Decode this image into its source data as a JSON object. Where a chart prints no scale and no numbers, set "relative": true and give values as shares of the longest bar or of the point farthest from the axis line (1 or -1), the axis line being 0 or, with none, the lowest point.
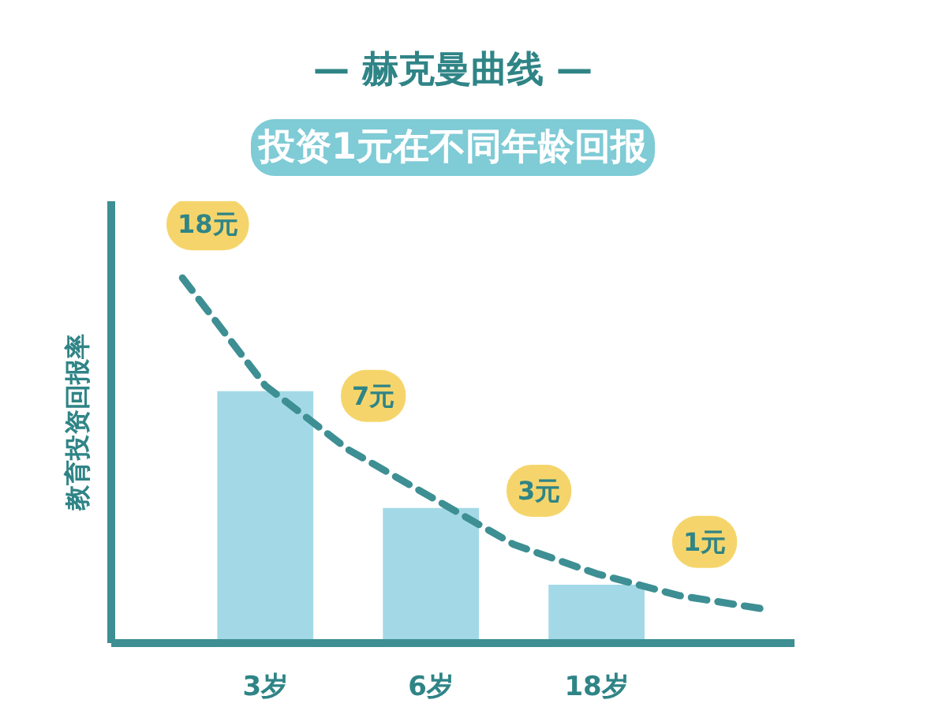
{
  "chart_data": {
    "type": "bar",
    "title": "— 赫克曼曲线 —",
    "subtitle": "投资1元在不同年龄回报",
    "ylabel": "教育投资回报率",
    "relative": true,
    "categories": [
      null,
      "3岁",
      null,
      "6岁",
      null,
      "18岁",
      null,
      null
    ],
    "series": [
      {
        "color": "#a3d9e6",
        "values": [
          null,
          0.69,
          null,
          0.37,
          null,
          0.16,
          null,
          null
        ]
      },
      {
        "type": "line",
        "color": "#3d8f93",
        "line_style": "dashed",
        "values": [
          1.0,
          0.705,
          0.53,
          0.4,
          0.27,
          0.19,
          0.13,
          0.094
        ]
      }
    ],
    "annotations": [
      "18元",
      "7元",
      "3元",
      "1元"
    ]
  }
}
